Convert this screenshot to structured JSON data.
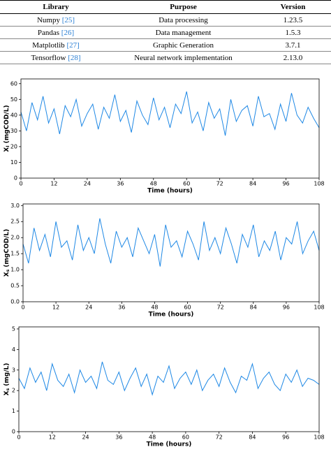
{
  "table": {
    "header": [
      "Library",
      "Purpose",
      "Version"
    ],
    "rows": [
      {
        "library": "Numpy",
        "ref": "[25]",
        "purpose": "Data processing",
        "version": "1.23.5"
      },
      {
        "library": "Pandas",
        "ref": "[26]",
        "purpose": "Data management",
        "version": "1.5.3"
      },
      {
        "library": "Matplotlib",
        "ref": "[27]",
        "purpose": "Graphic Generation",
        "version": "3.7.1"
      },
      {
        "library": "Tensorflow",
        "ref": "[28]",
        "purpose": "Neural network implementation",
        "version": "2.13.0"
      }
    ]
  },
  "chart_data": [
    {
      "type": "line",
      "ylabel": {
        "main": "X",
        "sub": "I",
        "rest": " (mgCOD/L)"
      },
      "xlabel": "Time (hours)",
      "color": "#1e88e5",
      "xlim": [
        0,
        108
      ],
      "xticks": [
        0,
        12,
        24,
        36,
        48,
        60,
        72,
        84,
        96,
        108
      ],
      "ylim": [
        0,
        63
      ],
      "yticks": [
        0,
        10,
        20,
        30,
        40,
        50,
        60
      ],
      "x": [
        0,
        2,
        4,
        6,
        8,
        10,
        12,
        14,
        16,
        18,
        20,
        22,
        24,
        26,
        28,
        30,
        32,
        34,
        36,
        38,
        40,
        42,
        44,
        46,
        48,
        50,
        52,
        54,
        56,
        58,
        60,
        62,
        64,
        66,
        68,
        70,
        72,
        74,
        76,
        78,
        80,
        82,
        84,
        86,
        88,
        90,
        92,
        94,
        96,
        98,
        100,
        102,
        104,
        106,
        108
      ],
      "values": [
        42,
        30,
        48,
        37,
        52,
        35,
        44,
        28,
        46,
        39,
        50,
        33,
        41,
        47,
        31,
        45,
        38,
        53,
        36,
        43,
        29,
        49,
        40,
        34,
        51,
        37,
        45,
        32,
        47,
        41,
        55,
        35,
        42,
        30,
        48,
        38,
        44,
        27,
        50,
        36,
        43,
        46,
        33,
        52,
        39,
        41,
        31,
        47,
        36,
        54,
        40,
        35,
        45,
        38,
        32
      ]
    },
    {
      "type": "line",
      "ylabel": {
        "main": "X",
        "sub": "s",
        "rest": " (mgCOD/L)"
      },
      "xlabel": "Time (hours)",
      "color": "#1e88e5",
      "xlim": [
        0,
        108
      ],
      "xticks": [
        0,
        12,
        24,
        36,
        48,
        60,
        72,
        84,
        96,
        108
      ],
      "ylim": [
        0,
        3.05
      ],
      "yticks": [
        {
          "value": 0,
          "label": "0.0"
        },
        0.5,
        {
          "value": 1,
          "label": "1.0"
        },
        1.5,
        {
          "value": 2,
          "label": "2.0"
        },
        2.5,
        {
          "value": 3,
          "label": "3.0"
        }
      ],
      "x": [
        0,
        2,
        4,
        6,
        8,
        10,
        12,
        14,
        16,
        18,
        20,
        22,
        24,
        26,
        28,
        30,
        32,
        34,
        36,
        38,
        40,
        42,
        44,
        46,
        48,
        50,
        52,
        54,
        56,
        58,
        60,
        62,
        64,
        66,
        68,
        70,
        72,
        74,
        76,
        78,
        80,
        82,
        84,
        86,
        88,
        90,
        92,
        94,
        96,
        98,
        100,
        102,
        104,
        106,
        108
      ],
      "values": [
        1.8,
        1.2,
        2.3,
        1.6,
        2.1,
        1.4,
        2.5,
        1.7,
        1.9,
        1.3,
        2.4,
        1.6,
        2.0,
        1.5,
        2.6,
        1.8,
        1.2,
        2.2,
        1.7,
        2.0,
        1.4,
        2.3,
        1.9,
        1.5,
        2.1,
        1.1,
        2.4,
        1.7,
        1.9,
        1.4,
        2.2,
        1.8,
        1.3,
        2.5,
        1.6,
        2.0,
        1.5,
        2.3,
        1.8,
        1.2,
        2.1,
        1.7,
        2.4,
        1.4,
        1.9,
        1.6,
        2.2,
        1.3,
        2.0,
        1.8,
        2.5,
        1.5,
        1.9,
        2.2,
        1.6
      ]
    },
    {
      "type": "line",
      "ylabel": {
        "main": "X",
        "sub": "s",
        "rest": " (mg/L)"
      },
      "xlabel": "Time (hours)",
      "color": "#1e88e5",
      "xlim": [
        0,
        108
      ],
      "xticks": [
        0,
        12,
        24,
        36,
        48,
        60,
        72,
        84,
        96,
        108
      ],
      "ylim": [
        0,
        5.1
      ],
      "yticks": [
        0,
        1,
        2,
        3,
        4,
        5
      ],
      "x": [
        0,
        2,
        4,
        6,
        8,
        10,
        12,
        14,
        16,
        18,
        20,
        22,
        24,
        26,
        28,
        30,
        32,
        34,
        36,
        38,
        40,
        42,
        44,
        46,
        48,
        50,
        52,
        54,
        56,
        58,
        60,
        62,
        64,
        66,
        68,
        70,
        72,
        74,
        76,
        78,
        80,
        82,
        84,
        86,
        88,
        90,
        92,
        94,
        96,
        98,
        100,
        102,
        104,
        106,
        108
      ],
      "values": [
        2.6,
        2.1,
        3.1,
        2.4,
        2.9,
        2.0,
        3.3,
        2.5,
        2.2,
        2.8,
        1.9,
        3.0,
        2.4,
        2.7,
        2.1,
        3.4,
        2.5,
        2.3,
        2.9,
        2.0,
        2.6,
        3.1,
        2.2,
        2.8,
        1.8,
        2.7,
        2.4,
        3.2,
        2.1,
        2.6,
        2.9,
        2.3,
        3.0,
        2.0,
        2.5,
        2.8,
        2.2,
        3.1,
        2.4,
        1.9,
        2.7,
        2.5,
        3.3,
        2.1,
        2.6,
        2.9,
        2.3,
        2.0,
        2.8,
        2.4,
        3.0,
        2.2,
        2.6,
        2.5,
        2.3
      ]
    }
  ]
}
